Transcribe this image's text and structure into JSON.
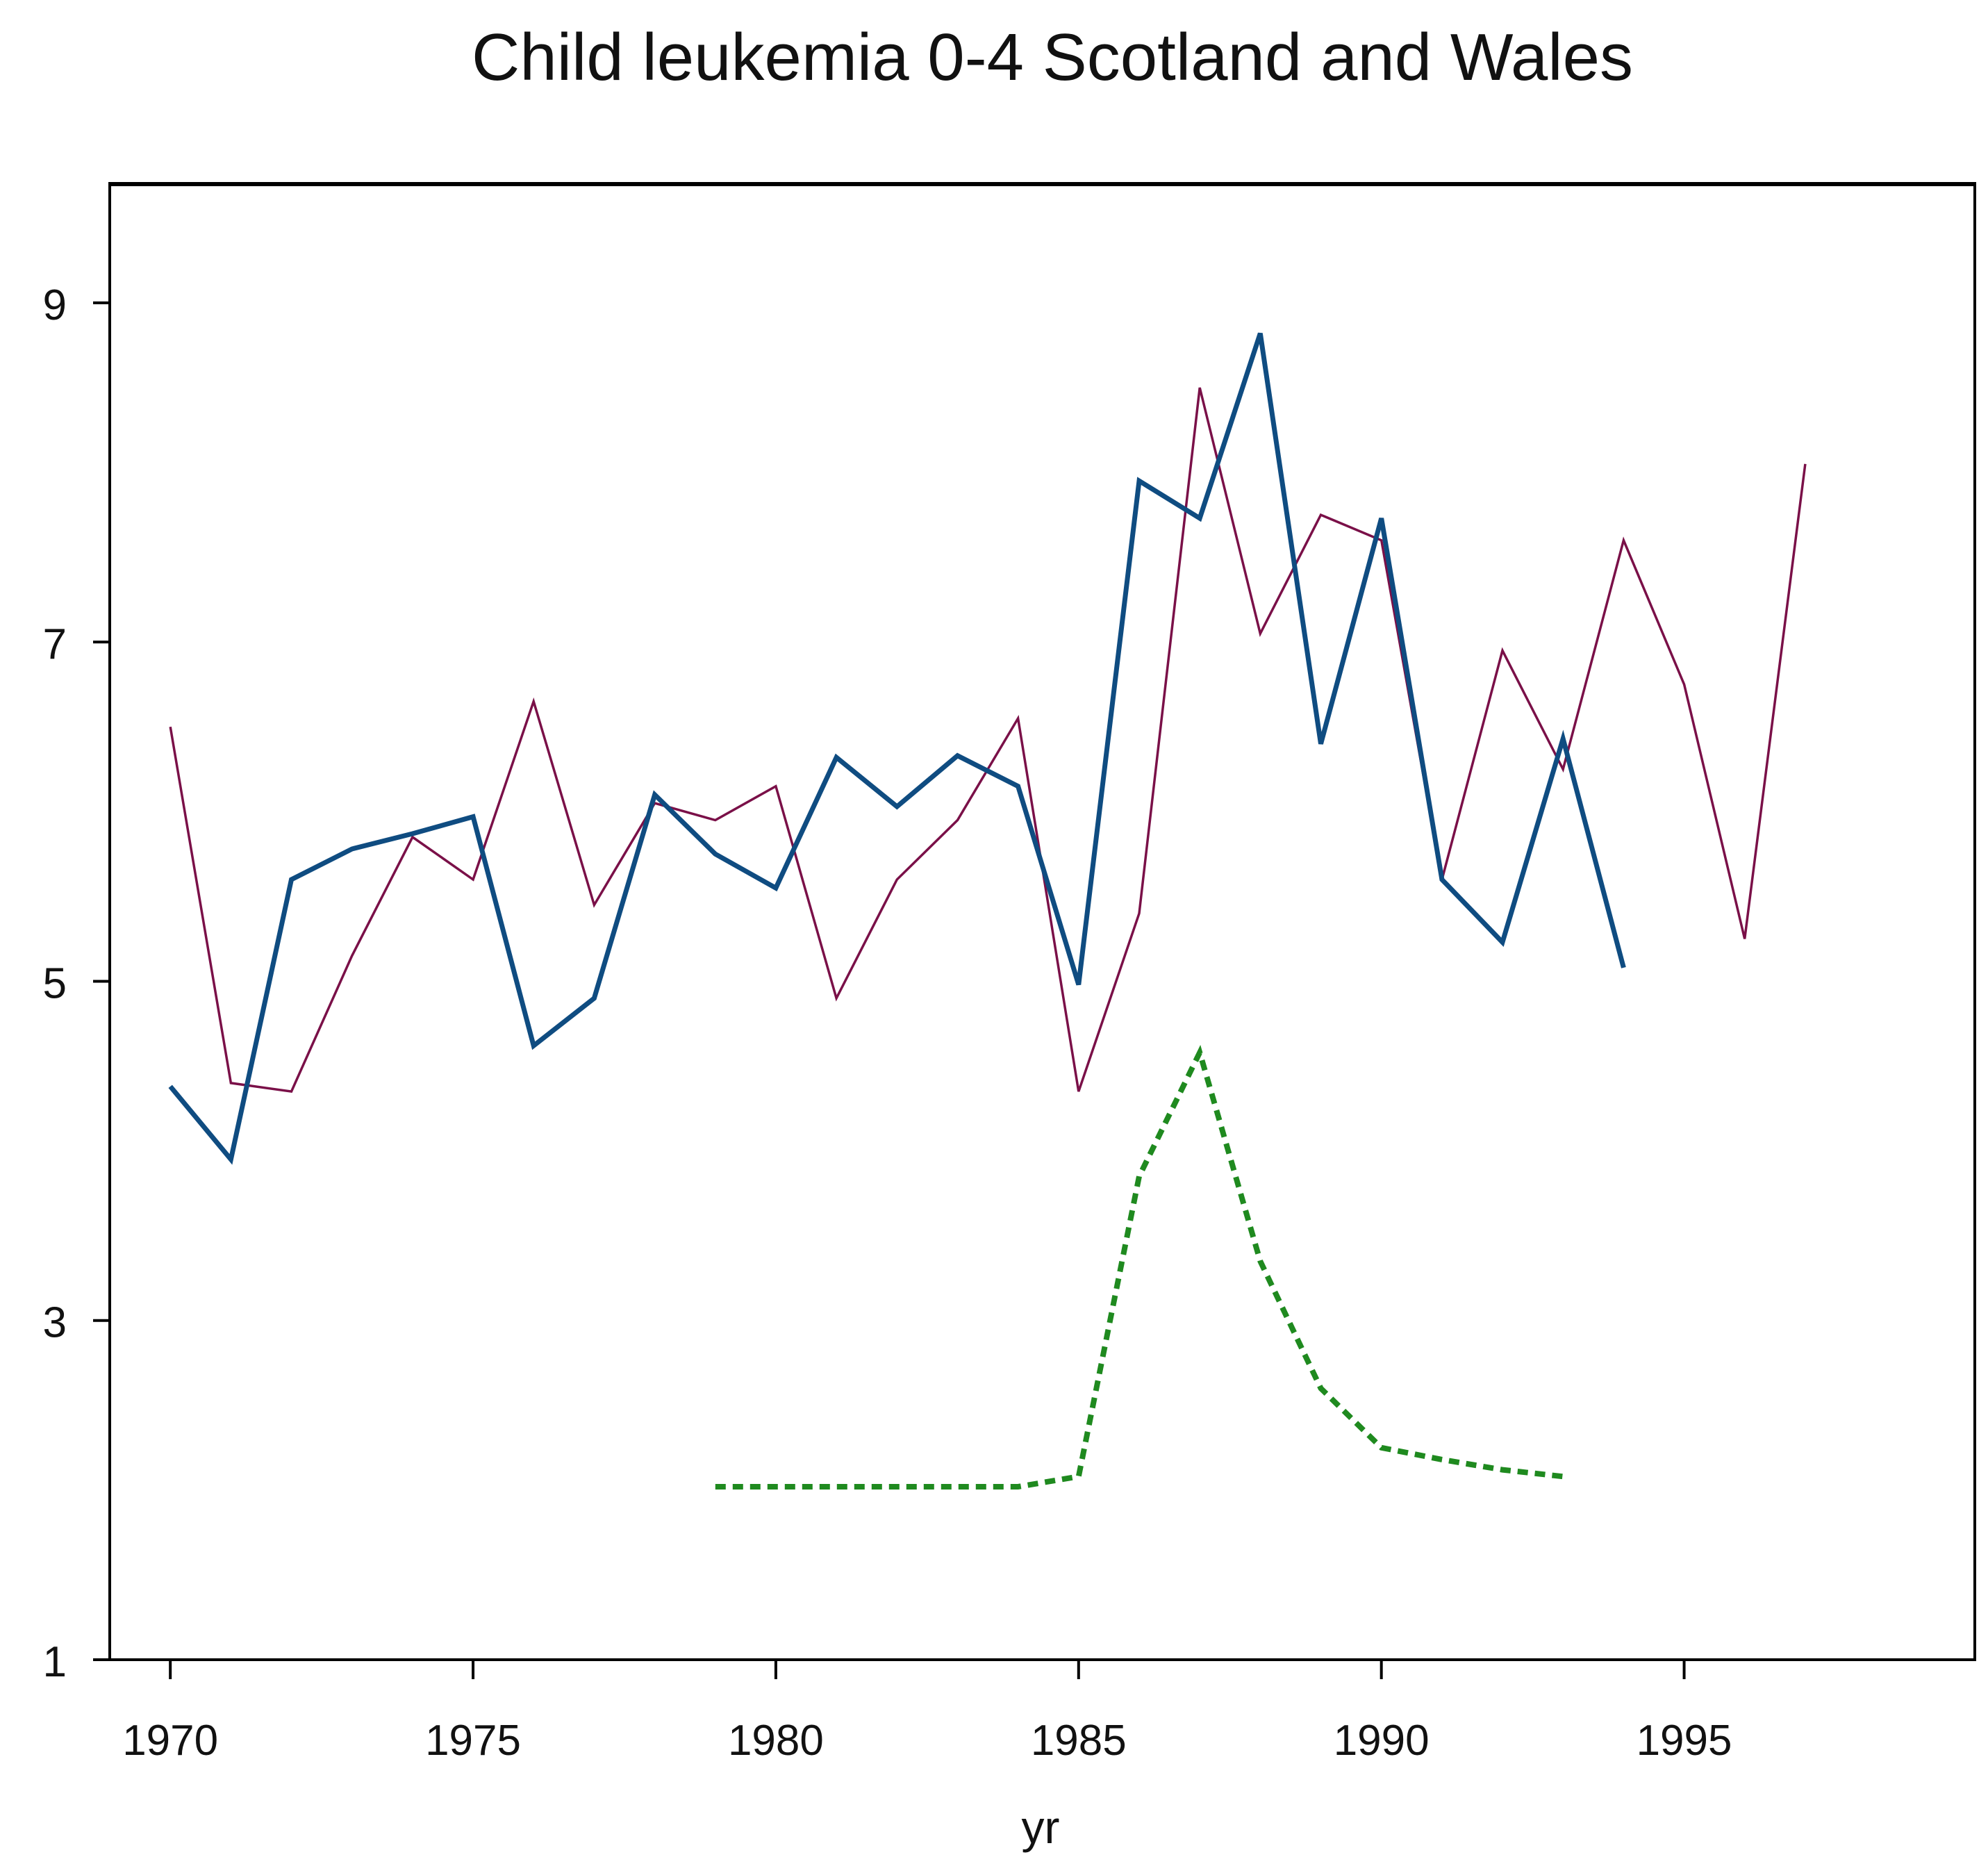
{
  "chart_data": {
    "type": "line",
    "title": "Child leukemia 0-4 Scotland and Wales",
    "xlabel": "yr",
    "ylabel": "",
    "xlim": [
      1969,
      1999.8
    ],
    "ylim": [
      1,
      9.7
    ],
    "x_ticks": [
      1970,
      1975,
      1980,
      1985,
      1990,
      1995
    ],
    "x_tick_labels": [
      "1970",
      "1975",
      "1980",
      "1985",
      "1990",
      "1995"
    ],
    "y_ticks": [
      1,
      3,
      5,
      7,
      9
    ],
    "y_tick_labels": [
      "1",
      "3",
      "5",
      "7",
      "9"
    ],
    "grid": false,
    "legend": "none",
    "series": [
      {
        "style": "solid-thin",
        "color": "#7a1048",
        "x": [
          1970,
          1971,
          1972,
          1973,
          1974,
          1975,
          1976,
          1977,
          1978,
          1979,
          1980,
          1981,
          1982,
          1983,
          1984,
          1985,
          1986,
          1987,
          1988,
          1989,
          1990,
          1991,
          1992,
          1993,
          1994,
          1995,
          1996,
          1997
        ],
        "y": [
          6.5,
          4.4,
          4.35,
          5.15,
          5.85,
          5.6,
          6.65,
          5.45,
          6.05,
          5.95,
          6.15,
          4.9,
          5.6,
          5.95,
          6.55,
          4.35,
          5.4,
          8.5,
          7.05,
          7.75,
          7.6,
          5.6,
          6.95,
          6.25,
          7.6,
          6.75,
          5.25,
          8.05
        ]
      },
      {
        "style": "solid-thick",
        "color": "#0f4c81",
        "x": [
          1970,
          1971,
          1972,
          1973,
          1974,
          1975,
          1976,
          1977,
          1978,
          1979,
          1980,
          1981,
          1982,
          1983,
          1984,
          1985,
          1986,
          1987,
          1988,
          1989,
          1990,
          1991,
          1992,
          1993,
          1994
        ],
        "y": [
          4.38,
          3.95,
          5.6,
          5.78,
          5.87,
          5.97,
          4.62,
          4.9,
          6.1,
          5.75,
          5.55,
          6.32,
          6.03,
          6.33,
          6.15,
          4.98,
          7.95,
          7.73,
          8.82,
          6.4,
          7.73,
          5.6,
          5.23,
          6.43,
          5.08
        ]
      },
      {
        "style": "dotted",
        "color": "#1f8a1f",
        "x": [
          1979,
          1980,
          1981,
          1982,
          1983,
          1984,
          1985,
          1986,
          1987,
          1988,
          1989,
          1990,
          1991,
          1992,
          1993
        ],
        "y": [
          2.02,
          2.02,
          2.02,
          2.02,
          2.02,
          2.02,
          2.08,
          3.85,
          4.58,
          3.35,
          2.6,
          2.25,
          2.18,
          2.12,
          2.08
        ]
      }
    ]
  }
}
